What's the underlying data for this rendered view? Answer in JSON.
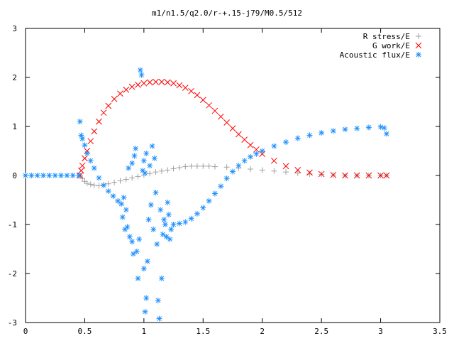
{
  "chart_data": {
    "type": "scatter",
    "title": "m1/n1.5/q2.0/r-+.15-j79/M0.5/512",
    "xlabel": "",
    "ylabel": "",
    "xlim": [
      0,
      3.5
    ],
    "ylim": [
      -3,
      3
    ],
    "x_ticks": [
      "0",
      "0.5",
      "1",
      "1.5",
      "2",
      "2.5",
      "3",
      "3.5"
    ],
    "y_ticks": [
      "3",
      "2",
      "1",
      "0",
      "-1",
      "-2",
      "-3"
    ],
    "grid": false,
    "legend_position": "top-right",
    "series": [
      {
        "name": "R stress/E",
        "marker": "plus",
        "color": "#a0a0a0",
        "points": [
          [
            0.46,
            0.0
          ],
          [
            0.48,
            -0.06
          ],
          [
            0.5,
            -0.12
          ],
          [
            0.52,
            -0.16
          ],
          [
            0.55,
            -0.18
          ],
          [
            0.58,
            -0.2
          ],
          [
            0.62,
            -0.21
          ],
          [
            0.66,
            -0.19
          ],
          [
            0.7,
            -0.17
          ],
          [
            0.75,
            -0.14
          ],
          [
            0.8,
            -0.11
          ],
          [
            0.85,
            -0.08
          ],
          [
            0.9,
            -0.05
          ],
          [
            0.95,
            -0.02
          ],
          [
            1.0,
            0.01
          ],
          [
            1.05,
            0.04
          ],
          [
            1.1,
            0.07
          ],
          [
            1.15,
            0.09
          ],
          [
            1.2,
            0.11
          ],
          [
            1.25,
            0.14
          ],
          [
            1.3,
            0.16
          ],
          [
            1.35,
            0.18
          ],
          [
            1.4,
            0.19
          ],
          [
            1.45,
            0.19
          ],
          [
            1.5,
            0.19
          ],
          [
            1.55,
            0.19
          ],
          [
            1.6,
            0.18
          ],
          [
            1.7,
            0.17
          ],
          [
            1.8,
            0.15
          ],
          [
            1.9,
            0.13
          ],
          [
            2.0,
            0.11
          ],
          [
            2.1,
            0.09
          ],
          [
            2.2,
            0.07
          ],
          [
            2.3,
            0.05
          ],
          [
            2.4,
            0.03
          ],
          [
            2.5,
            0.02
          ],
          [
            2.6,
            0.01
          ],
          [
            2.7,
            0.0
          ],
          [
            2.8,
            0.0
          ],
          [
            2.9,
            0.0
          ],
          [
            3.0,
            0.0
          ],
          [
            3.05,
            0.0
          ]
        ]
      },
      {
        "name": "G work/E",
        "marker": "cross",
        "color": "#ff0000",
        "points": [
          [
            0.46,
            0.0
          ],
          [
            0.47,
            0.1
          ],
          [
            0.48,
            0.2
          ],
          [
            0.5,
            0.35
          ],
          [
            0.52,
            0.5
          ],
          [
            0.55,
            0.7
          ],
          [
            0.58,
            0.9
          ],
          [
            0.62,
            1.1
          ],
          [
            0.66,
            1.28
          ],
          [
            0.7,
            1.42
          ],
          [
            0.75,
            1.56
          ],
          [
            0.8,
            1.67
          ],
          [
            0.85,
            1.75
          ],
          [
            0.9,
            1.81
          ],
          [
            0.95,
            1.85
          ],
          [
            1.0,
            1.88
          ],
          [
            1.05,
            1.9
          ],
          [
            1.1,
            1.91
          ],
          [
            1.15,
            1.91
          ],
          [
            1.2,
            1.9
          ],
          [
            1.25,
            1.88
          ],
          [
            1.3,
            1.84
          ],
          [
            1.35,
            1.79
          ],
          [
            1.4,
            1.72
          ],
          [
            1.45,
            1.64
          ],
          [
            1.5,
            1.54
          ],
          [
            1.55,
            1.43
          ],
          [
            1.6,
            1.32
          ],
          [
            1.65,
            1.2
          ],
          [
            1.7,
            1.08
          ],
          [
            1.75,
            0.96
          ],
          [
            1.8,
            0.84
          ],
          [
            1.85,
            0.73
          ],
          [
            1.9,
            0.62
          ],
          [
            1.95,
            0.53
          ],
          [
            2.0,
            0.44
          ],
          [
            2.1,
            0.3
          ],
          [
            2.2,
            0.19
          ],
          [
            2.3,
            0.11
          ],
          [
            2.4,
            0.06
          ],
          [
            2.5,
            0.03
          ],
          [
            2.6,
            0.01
          ],
          [
            2.7,
            0.0
          ],
          [
            2.8,
            0.0
          ],
          [
            2.9,
            0.0
          ],
          [
            3.0,
            0.0
          ],
          [
            3.05,
            0.0
          ]
        ]
      },
      {
        "name": "Acoustic flux/E",
        "marker": "star",
        "color": "#1e90ff",
        "points": [
          [
            0.0,
            0.0
          ],
          [
            0.05,
            0.0
          ],
          [
            0.1,
            0.0
          ],
          [
            0.15,
            0.0
          ],
          [
            0.2,
            0.0
          ],
          [
            0.25,
            0.0
          ],
          [
            0.3,
            0.0
          ],
          [
            0.35,
            0.0
          ],
          [
            0.4,
            0.0
          ],
          [
            0.45,
            0.0
          ],
          [
            0.46,
            1.1
          ],
          [
            0.47,
            0.82
          ],
          [
            0.48,
            0.75
          ],
          [
            0.5,
            0.62
          ],
          [
            0.52,
            0.45
          ],
          [
            0.55,
            0.3
          ],
          [
            0.58,
            0.15
          ],
          [
            0.62,
            -0.05
          ],
          [
            0.66,
            -0.2
          ],
          [
            0.7,
            -0.32
          ],
          [
            0.74,
            -0.42
          ],
          [
            0.78,
            -0.52
          ],
          [
            0.81,
            -0.58
          ],
          [
            0.83,
            -0.45
          ],
          [
            0.85,
            -0.7
          ],
          [
            0.82,
            -0.85
          ],
          [
            0.86,
            -1.05
          ],
          [
            0.88,
            -1.25
          ],
          [
            0.84,
            -1.1
          ],
          [
            0.9,
            -1.35
          ],
          [
            0.87,
            0.15
          ],
          [
            0.9,
            0.25
          ],
          [
            0.92,
            0.4
          ],
          [
            0.93,
            0.55
          ],
          [
            0.91,
            -1.6
          ],
          [
            0.94,
            -1.55
          ],
          [
            0.95,
            -2.1
          ],
          [
            0.96,
            -1.3
          ],
          [
            0.97,
            2.15
          ],
          [
            0.98,
            2.05
          ],
          [
            0.99,
            0.1
          ],
          [
            1.0,
            0.3
          ],
          [
            1.01,
            0.05
          ],
          [
            1.02,
            0.45
          ],
          [
            1.0,
            -1.9
          ],
          [
            1.02,
            -2.5
          ],
          [
            1.03,
            -1.75
          ],
          [
            1.04,
            -0.9
          ],
          [
            1.05,
            0.2
          ],
          [
            1.06,
            -0.6
          ],
          [
            1.07,
            0.6
          ],
          [
            1.08,
            -1.1
          ],
          [
            1.01,
            -2.78
          ],
          [
            1.09,
            0.35
          ],
          [
            1.1,
            -0.35
          ],
          [
            1.11,
            -1.4
          ],
          [
            1.12,
            -2.55
          ],
          [
            1.13,
            -2.92
          ],
          [
            1.14,
            -0.7
          ],
          [
            1.15,
            -2.1
          ],
          [
            1.16,
            -1.2
          ],
          [
            1.17,
            -0.9
          ],
          [
            1.18,
            -1.0
          ],
          [
            1.19,
            -1.25
          ],
          [
            1.2,
            -0.55
          ],
          [
            1.21,
            -0.8
          ],
          [
            1.22,
            -1.3
          ],
          [
            1.23,
            -1.1
          ],
          [
            1.25,
            -1.0
          ],
          [
            1.3,
            -0.98
          ],
          [
            1.35,
            -0.95
          ],
          [
            1.4,
            -0.88
          ],
          [
            1.45,
            -0.78
          ],
          [
            1.5,
            -0.66
          ],
          [
            1.55,
            -0.52
          ],
          [
            1.6,
            -0.37
          ],
          [
            1.65,
            -0.22
          ],
          [
            1.7,
            -0.06
          ],
          [
            1.75,
            0.08
          ],
          [
            1.8,
            0.2
          ],
          [
            1.85,
            0.3
          ],
          [
            1.9,
            0.38
          ],
          [
            1.95,
            0.44
          ],
          [
            2.0,
            0.5
          ],
          [
            2.1,
            0.6
          ],
          [
            2.2,
            0.68
          ],
          [
            2.3,
            0.76
          ],
          [
            2.4,
            0.82
          ],
          [
            2.5,
            0.87
          ],
          [
            2.6,
            0.91
          ],
          [
            2.7,
            0.94
          ],
          [
            2.8,
            0.96
          ],
          [
            2.9,
            0.98
          ],
          [
            3.0,
            0.99
          ],
          [
            3.03,
            0.97
          ],
          [
            3.05,
            0.85
          ]
        ]
      }
    ]
  }
}
